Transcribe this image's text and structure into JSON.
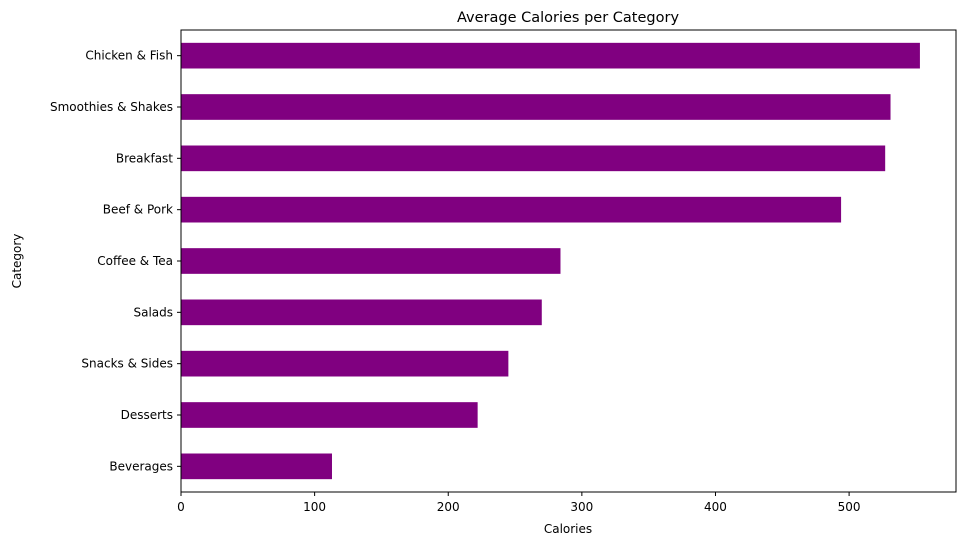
{
  "chart_data": {
    "type": "bar",
    "orientation": "horizontal",
    "title": "Average Calories per Category",
    "xlabel": "Calories",
    "ylabel": "Category",
    "xlim": [
      0,
      580
    ],
    "xticks": [
      "0",
      "100",
      "200",
      "300",
      "400",
      "500"
    ],
    "grid": false,
    "bar_color": "#800080",
    "categories": [
      "Chicken & Fish",
      "Smoothies & Shakes",
      "Breakfast",
      "Beef & Pork",
      "Coffee & Tea",
      "Salads",
      "Snacks & Sides",
      "Desserts",
      "Beverages"
    ],
    "values": [
      553,
      531,
      527,
      494,
      284,
      270,
      245,
      222,
      113
    ]
  }
}
